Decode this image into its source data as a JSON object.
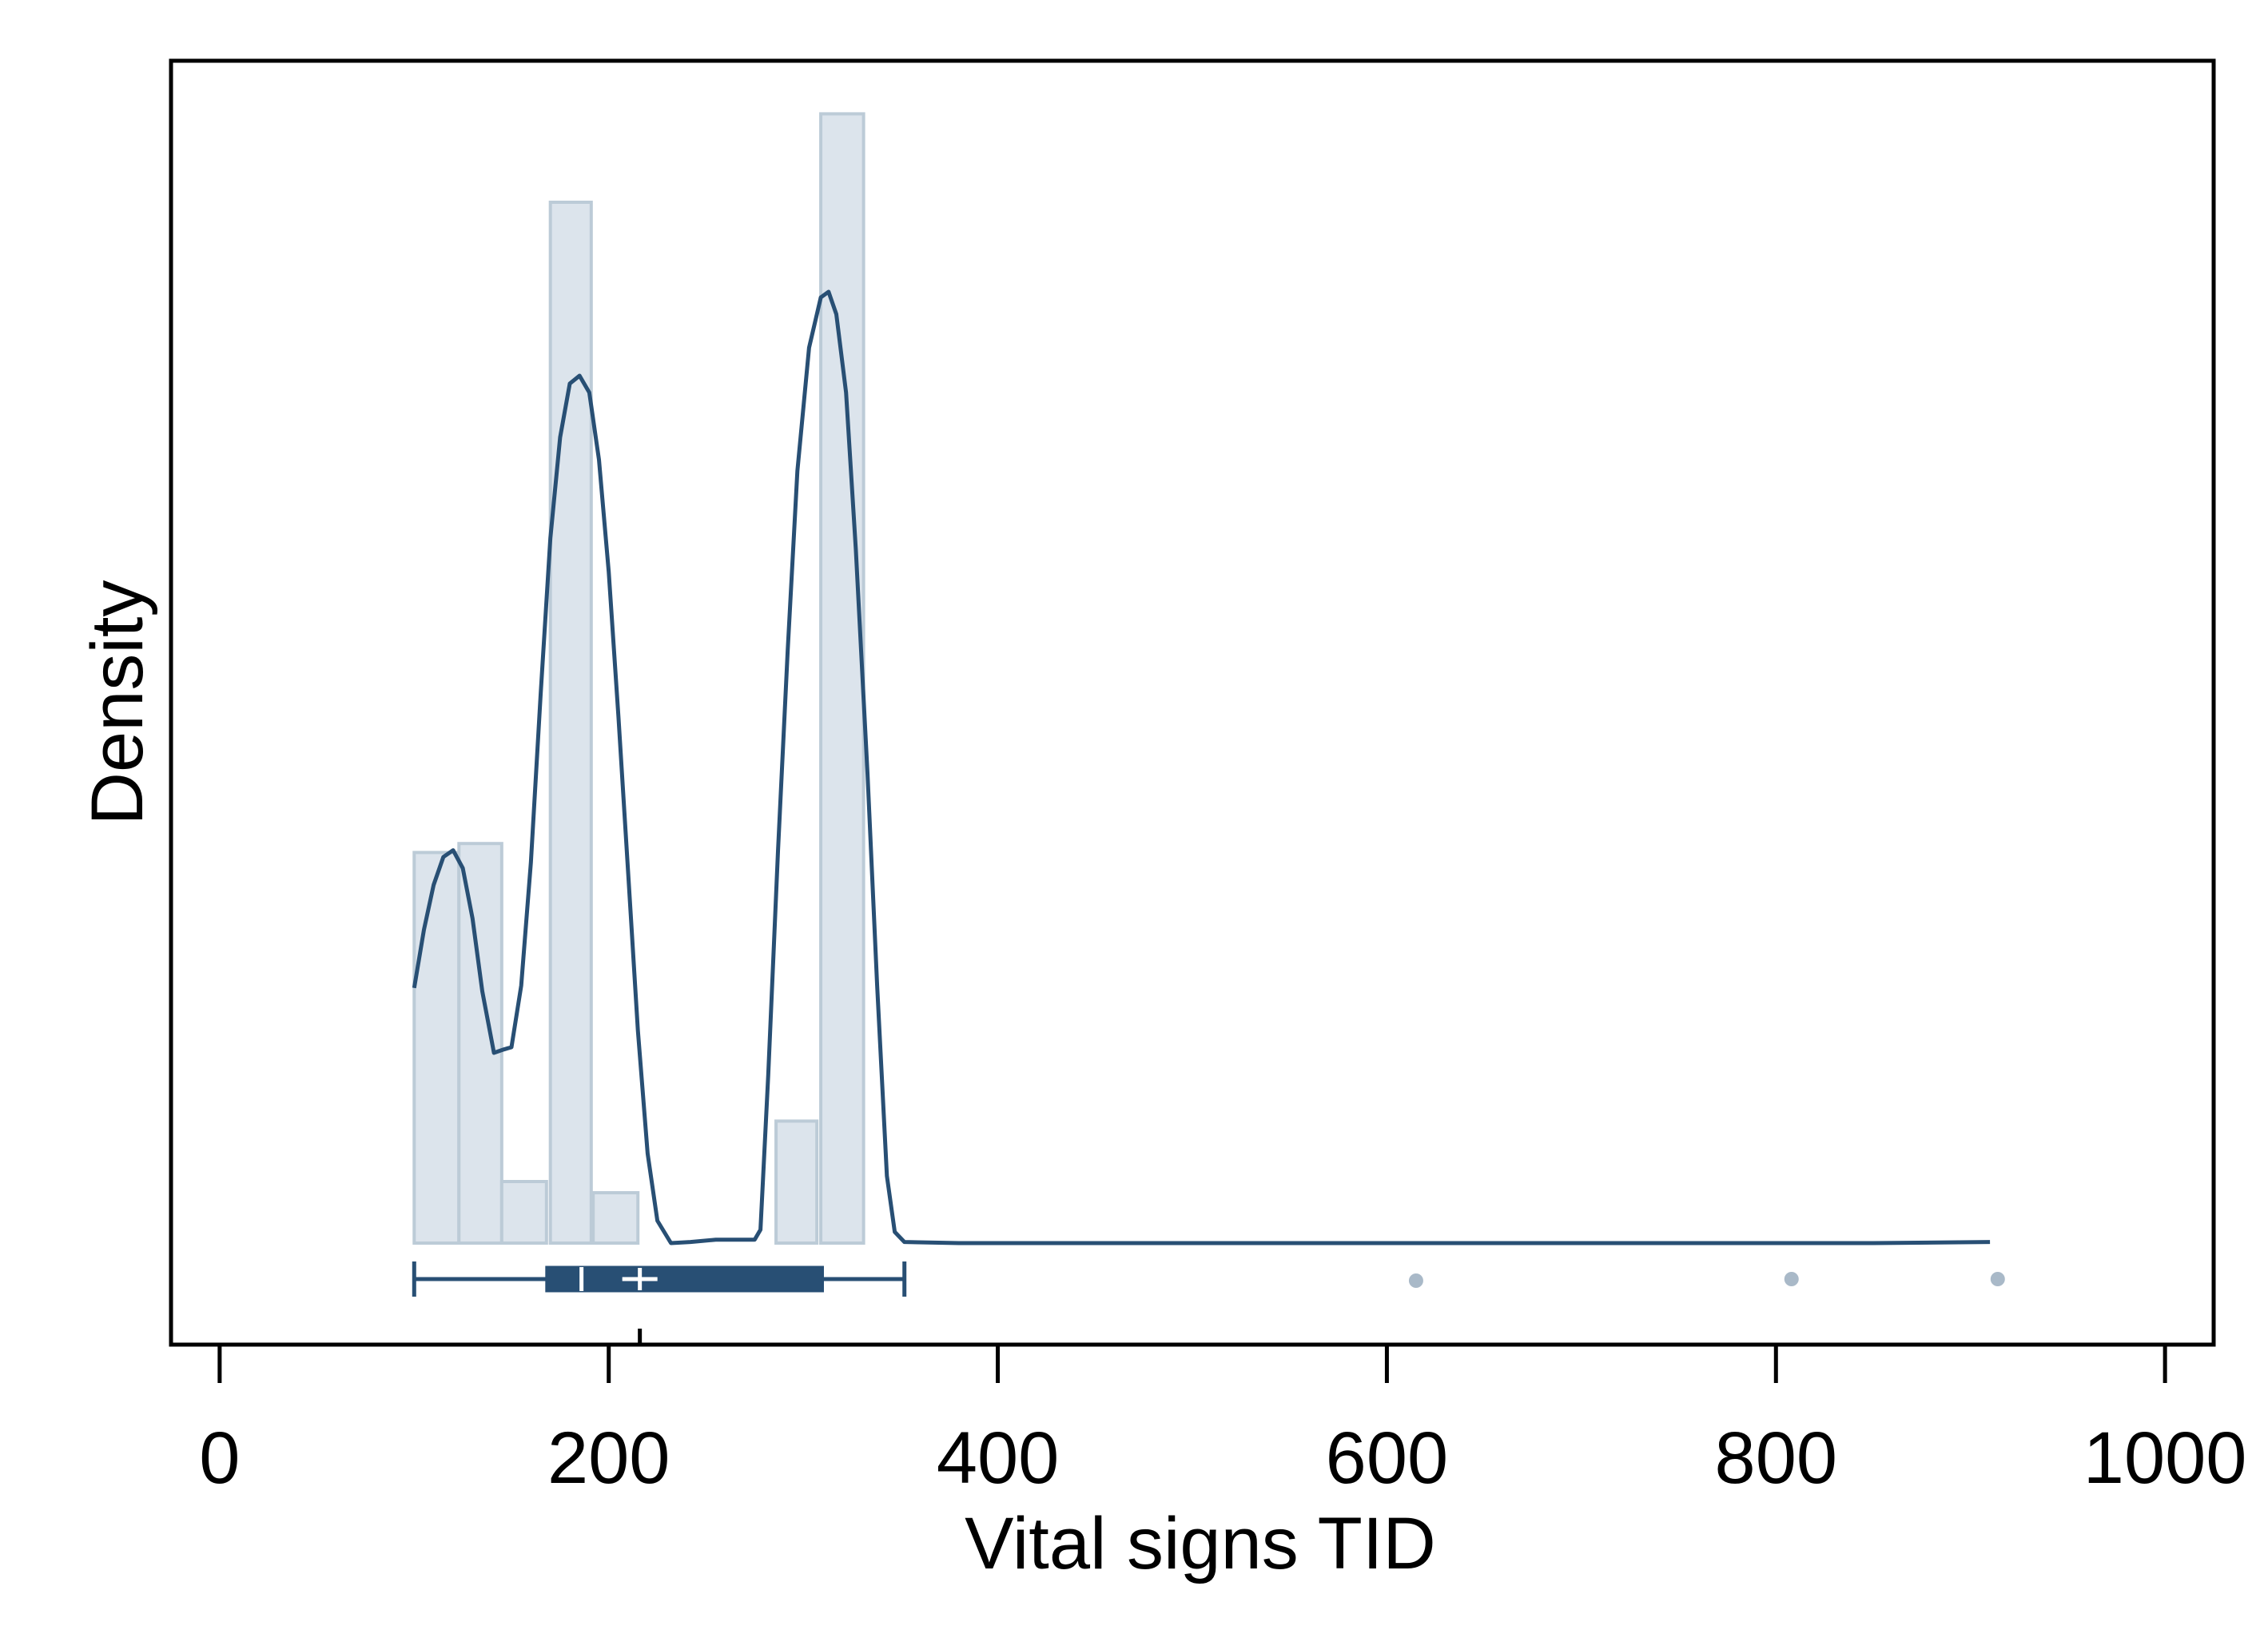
{
  "chart_data": {
    "type": "histogram",
    "xlabel": "Vital signs TID",
    "ylabel": "Density",
    "xlim": [
      -25,
      1025
    ],
    "x_ticks": [
      0,
      200,
      400,
      600,
      800,
      1000
    ],
    "x_tick_labels": [
      "0",
      "200",
      "400",
      "600",
      "800",
      "1000"
    ],
    "y_ticks_shown": false,
    "grid": false,
    "histogram": {
      "bins": [
        {
          "x0": 100,
          "x1": 123,
          "height": 0.0349
        },
        {
          "x0": 123,
          "x1": 145,
          "height": 0.0357
        },
        {
          "x0": 145,
          "x1": 168,
          "height": 0.0055
        },
        {
          "x0": 170,
          "x1": 191,
          "height": 0.093
        },
        {
          "x0": 192,
          "x1": 215,
          "height": 0.0045
        },
        {
          "x0": 286,
          "x1": 307,
          "height": 0.0109
        },
        {
          "x0": 309,
          "x1": 331,
          "height": 0.1009
        }
      ],
      "fill_color": "#dce4ec",
      "edge_color": "#bccbd7"
    },
    "density_curve": {
      "color": "#284f74",
      "points": [
        [
          100,
          0.0228
        ],
        [
          105,
          0.028
        ],
        [
          110,
          0.032
        ],
        [
          115,
          0.0345
        ],
        [
          120,
          0.0351
        ],
        [
          125,
          0.0335
        ],
        [
          130,
          0.029
        ],
        [
          135,
          0.0225
        ],
        [
          141,
          0.017
        ],
        [
          146,
          0.0173
        ],
        [
          150,
          0.0175
        ],
        [
          155,
          0.023
        ],
        [
          160,
          0.034
        ],
        [
          165,
          0.049
        ],
        [
          170,
          0.063
        ],
        [
          175,
          0.072
        ],
        [
          180,
          0.0768
        ],
        [
          185,
          0.0775
        ],
        [
          190,
          0.076
        ],
        [
          195,
          0.07
        ],
        [
          200,
          0.06
        ],
        [
          205,
          0.047
        ],
        [
          210,
          0.033
        ],
        [
          215,
          0.019
        ],
        [
          220,
          0.008
        ],
        [
          225,
          0.002
        ],
        [
          232,
          0.0
        ],
        [
          242,
          0.0001
        ],
        [
          255,
          0.0003
        ],
        [
          268,
          0.0003
        ],
        [
          275,
          0.0003
        ],
        [
          278,
          0.0012
        ],
        [
          282,
          0.015
        ],
        [
          287,
          0.035
        ],
        [
          292,
          0.053
        ],
        [
          297,
          0.069
        ],
        [
          303,
          0.08
        ],
        [
          309,
          0.0845
        ],
        [
          313,
          0.085
        ],
        [
          317,
          0.083
        ],
        [
          322,
          0.076
        ],
        [
          327,
          0.062
        ],
        [
          333,
          0.042
        ],
        [
          338,
          0.023
        ],
        [
          343,
          0.006
        ],
        [
          347,
          0.001
        ],
        [
          352,
          0.0001
        ],
        [
          380,
          0.0
        ],
        [
          450,
          0.0
        ],
        [
          550,
          0.0
        ],
        [
          600,
          0.0
        ],
        [
          650,
          0.0
        ],
        [
          700,
          0.0
        ],
        [
          750,
          0.0
        ],
        [
          800,
          0.0
        ],
        [
          850,
          0.0
        ],
        [
          910,
          0.0001
        ]
      ]
    },
    "boxplot": {
      "whisker_low": 100,
      "q1": 168,
      "median": 186,
      "mean": 216,
      "q3": 310,
      "whisker_high": 352,
      "outliers": [
        615,
        808,
        914
      ],
      "box_color": "#284f74",
      "outlier_color": "#a9b9c8"
    },
    "mean_tick": 216
  }
}
